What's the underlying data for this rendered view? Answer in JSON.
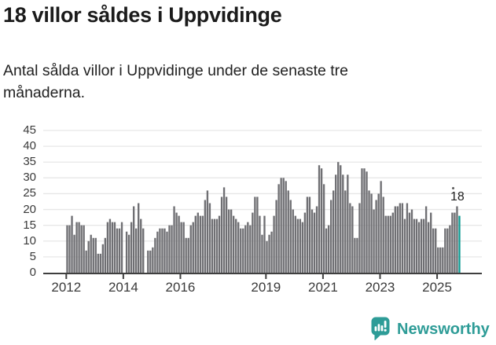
{
  "header": {
    "title": "18 villor såldes i Uppvidinge",
    "subtitle_line1": "Antal sålda villor i Uppvidinge under de senaste tre",
    "subtitle_line2": "månaderna."
  },
  "chart_data": {
    "type": "bar",
    "title": "18 villor såldes i Uppvidinge",
    "xlabel": "",
    "ylabel": "",
    "frequency": "monthly",
    "x_start": "2012-01",
    "x_end": "2025-10",
    "ylim": [
      0,
      45
    ],
    "grid": true,
    "legend": false,
    "yticks": [
      0,
      5,
      10,
      15,
      20,
      25,
      30,
      35,
      40,
      45
    ],
    "xticks": [
      {
        "label": "2012",
        "month_index": 0
      },
      {
        "label": "2014",
        "month_index": 24
      },
      {
        "label": "2016",
        "month_index": 48
      },
      {
        "label": "2019",
        "month_index": 84
      },
      {
        "label": "2021",
        "month_index": 108
      },
      {
        "label": "2023",
        "month_index": 132
      },
      {
        "label": "2025",
        "month_index": 156
      }
    ],
    "values": [
      15,
      15,
      18,
      12,
      16,
      16,
      15,
      15,
      7,
      10,
      12,
      11,
      11,
      6,
      6,
      9,
      11,
      16,
      17,
      16,
      16,
      14,
      14,
      16,
      0,
      13,
      12,
      16,
      21,
      14,
      22,
      17,
      14,
      0,
      7,
      7,
      8,
      11,
      13,
      14,
      14,
      14,
      13,
      15,
      15,
      21,
      19,
      18,
      16,
      16,
      11,
      11,
      15,
      16,
      18,
      19,
      18,
      18,
      23,
      26,
      22,
      17,
      17,
      17,
      18,
      24,
      27,
      24,
      20,
      20,
      18,
      17,
      16,
      14,
      14,
      15,
      16,
      15,
      19,
      24,
      24,
      18,
      12,
      18,
      10,
      12,
      13,
      18,
      23,
      28,
      30,
      30,
      29,
      26,
      23,
      20,
      18,
      17,
      17,
      16,
      19,
      24,
      24,
      20,
      19,
      21,
      34,
      33,
      28,
      14,
      15,
      23,
      26,
      31,
      35,
      34,
      31,
      26,
      31,
      22,
      21,
      11,
      11,
      22,
      33,
      33,
      32,
      26,
      25,
      20,
      23,
      25,
      29,
      24,
      18,
      18,
      18,
      19,
      21,
      21,
      22,
      22,
      17,
      22,
      19,
      20,
      17,
      17,
      16,
      17,
      17,
      21,
      16,
      19,
      14,
      14,
      8,
      8,
      8,
      14,
      14,
      15,
      19,
      19,
      21,
      18
    ],
    "annotation": {
      "label": "18",
      "applies_to": "last-bar"
    }
  },
  "footer": {
    "brand": "Newsworthy"
  },
  "colors": {
    "accent_teal": "#0e9b92",
    "logo_teal": "#2e9c97",
    "bar_gray": "#6f6f73",
    "grid": "#e7e7e7",
    "axis": "#3f3f3f"
  }
}
